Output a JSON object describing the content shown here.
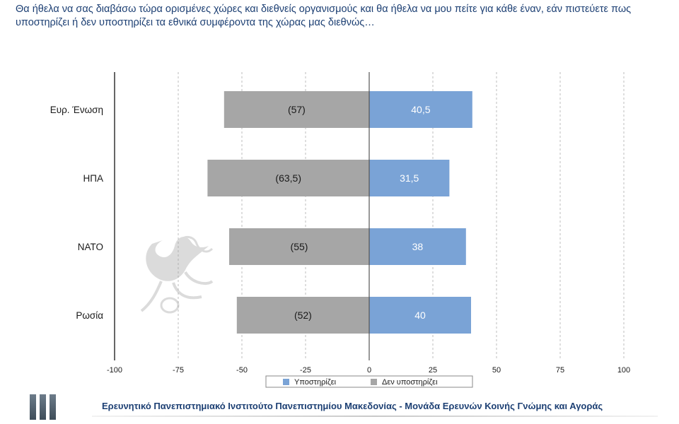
{
  "question": "Θα ήθελα να σας διαβάσω τώρα ορισμένες χώρες και διεθνείς οργανισμούς και θα ήθελα να μου πείτε για κάθε έναν, εάν πιστεύετε πως υποστηρίζει ή δεν υποστηρίζει τα εθνικά συμφέροντα της χώρας μας διεθνώς…",
  "footer": "Ερευνητικό Πανεπιστημιακό Ινστιτούτο Πανεπιστημίου Μακεδονίας - Μονάδα Ερευνών Κοινής Γνώμης και Αγοράς",
  "colors": {
    "supports": "#7aa3d6",
    "not_supports": "#a6a6a6",
    "text": "#1c3f73"
  },
  "chart_data": {
    "type": "bar",
    "orientation": "horizontal",
    "stacked": "diverging",
    "categories": [
      "Ευρ. Ένωση",
      "ΗΠΑ",
      "ΝΑΤΟ",
      "Ρωσία"
    ],
    "series": [
      {
        "name": "Υποστηρίζει",
        "values": [
          40.5,
          31.5,
          38,
          40
        ],
        "labels": [
          "40,5",
          "31,5",
          "38",
          "40"
        ]
      },
      {
        "name": "Δεν υποστηρίζει",
        "values": [
          -57,
          -63.5,
          -55,
          -52
        ],
        "labels": [
          "(57)",
          "(63,5)",
          "(55)",
          "(52)"
        ]
      }
    ],
    "xlim": [
      -100,
      100
    ],
    "xticks": [
      -100,
      -75,
      -50,
      -25,
      0,
      25,
      50,
      75,
      100
    ],
    "grid": "vertical-dashed",
    "legend": "bottom",
    "title": "",
    "xlabel": "",
    "ylabel": ""
  }
}
